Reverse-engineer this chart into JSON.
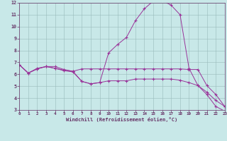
{
  "xlabel": "Windchill (Refroidissement éolien,°C)",
  "background_color": "#c8e8e8",
  "grid_color": "#99bbbb",
  "line_color": "#993399",
  "spine_color": "#663366",
  "tick_color": "#663366",
  "xlim": [
    0,
    23
  ],
  "ylim": [
    3,
    12
  ],
  "xticks": [
    0,
    1,
    2,
    3,
    4,
    5,
    6,
    7,
    8,
    9,
    10,
    11,
    12,
    13,
    14,
    15,
    16,
    17,
    18,
    19,
    20,
    21,
    22,
    23
  ],
  "yticks": [
    3,
    4,
    5,
    6,
    7,
    8,
    9,
    10,
    11,
    12
  ],
  "curves": [
    [
      6.8,
      6.1,
      6.5,
      6.65,
      6.65,
      6.4,
      6.25,
      5.4,
      5.2,
      5.3,
      7.8,
      8.5,
      9.1,
      10.5,
      11.5,
      12.15,
      12.2,
      11.8,
      11.0,
      6.5,
      5.05,
      4.3,
      3.3,
      2.9
    ],
    [
      6.8,
      6.1,
      6.45,
      6.65,
      6.5,
      6.35,
      6.25,
      6.45,
      6.45,
      6.45,
      6.45,
      6.45,
      6.45,
      6.45,
      6.45,
      6.45,
      6.45,
      6.45,
      6.45,
      6.4,
      6.4,
      5.05,
      4.3,
      3.3
    ],
    [
      6.8,
      6.1,
      6.45,
      6.65,
      6.5,
      6.3,
      6.2,
      5.4,
      5.2,
      5.3,
      5.45,
      5.45,
      5.45,
      5.6,
      5.6,
      5.6,
      5.6,
      5.6,
      5.5,
      5.3,
      5.05,
      4.5,
      3.8,
      3.3
    ]
  ]
}
